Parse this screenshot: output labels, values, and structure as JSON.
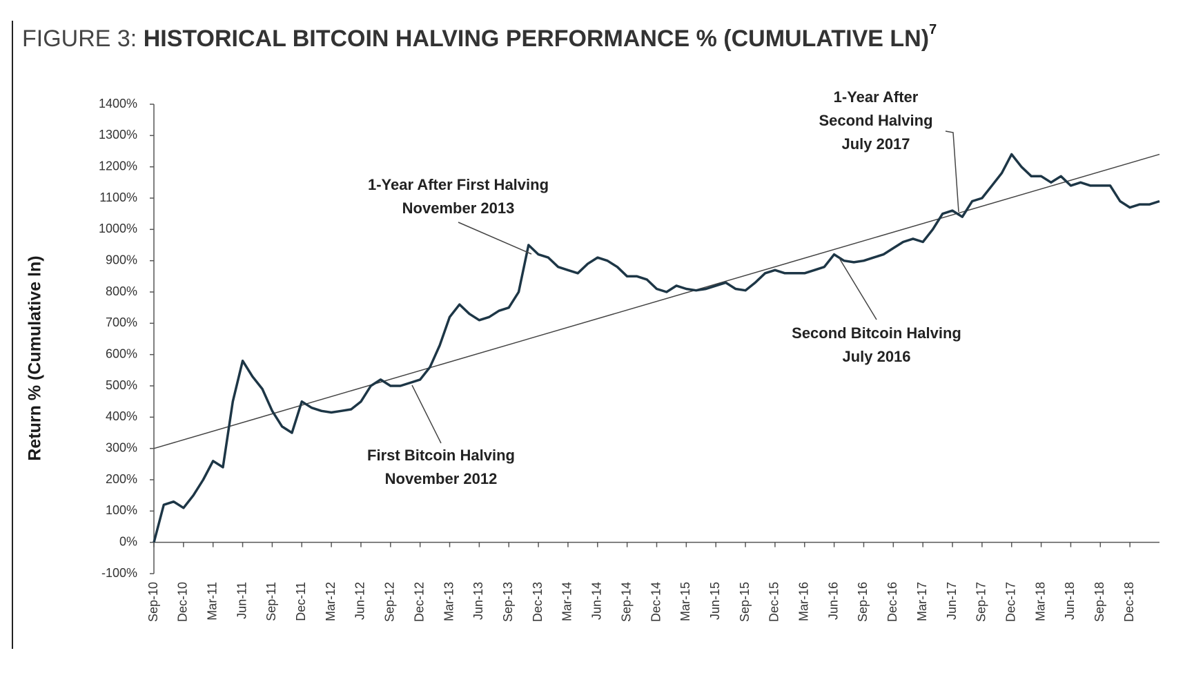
{
  "chart_data": {
    "type": "line",
    "title_label": "FIGURE 3:",
    "title": "HISTORICAL BITCOIN HALVING PERFORMANCE % (CUMULATIVE LN)",
    "title_note": "7",
    "y_label": "Return % (Cumulative ln)",
    "categories": [
      "Sep-10",
      null,
      null,
      "Dec-10",
      null,
      null,
      "Mar-11",
      null,
      null,
      "Jun-11",
      null,
      null,
      "Sep-11",
      null,
      null,
      "Dec-11",
      null,
      null,
      "Mar-12",
      null,
      null,
      "Jun-12",
      null,
      null,
      "Sep-12",
      null,
      null,
      "Dec-12",
      null,
      null,
      "Mar-13",
      null,
      null,
      "Jun-13",
      null,
      null,
      "Sep-13",
      null,
      null,
      "Dec-13",
      null,
      null,
      "Mar-14",
      null,
      null,
      "Jun-14",
      null,
      null,
      "Sep-14",
      null,
      null,
      "Dec-14",
      null,
      null,
      "Mar-15",
      null,
      null,
      "Jun-15",
      null,
      null,
      "Sep-15",
      null,
      null,
      "Dec-15",
      null,
      null,
      "Mar-16",
      null,
      null,
      "Jun-16",
      null,
      null,
      "Sep-16",
      null,
      null,
      "Dec-16",
      null,
      null,
      "Mar-17",
      null,
      null,
      "Jun-17",
      null,
      null,
      "Sep-17",
      null,
      null,
      "Dec-17",
      null,
      null,
      "Mar-18",
      null,
      null,
      "Jun-18",
      null,
      null,
      "Sep-18",
      null,
      null,
      "Dec-18",
      null,
      null,
      null
    ],
    "series": [
      {
        "color": "#1d3646",
        "values": [
          0,
          120,
          130,
          110,
          150,
          200,
          260,
          240,
          450,
          580,
          530,
          490,
          420,
          370,
          350,
          450,
          430,
          420,
          415,
          420,
          425,
          450,
          500,
          520,
          500,
          500,
          510,
          520,
          560,
          630,
          720,
          760,
          730,
          710,
          720,
          740,
          750,
          800,
          950,
          920,
          910,
          880,
          870,
          860,
          890,
          910,
          900,
          880,
          850,
          850,
          840,
          810,
          800,
          820,
          810,
          805,
          810,
          820,
          830,
          810,
          805,
          830,
          860,
          870,
          860,
          860,
          860,
          870,
          880,
          920,
          900,
          895,
          900,
          910,
          920,
          940,
          960,
          970,
          960,
          1000,
          1050,
          1060,
          1040,
          1090,
          1100,
          1140,
          1180,
          1240,
          1200,
          1170,
          1170,
          1150,
          1170,
          1140,
          1150,
          1140,
          1140,
          1140,
          1090,
          1070,
          1080,
          1080,
          1090
        ]
      }
    ],
    "trend_line": [
      300,
      1240
    ],
    "ylim": [
      -100,
      1400
    ],
    "yticks": [
      {
        "value": -100,
        "label": "-100%"
      },
      {
        "value": 0,
        "label": "0%"
      },
      {
        "value": 100,
        "label": "100%"
      },
      {
        "value": 200,
        "label": "200%"
      },
      {
        "value": 300,
        "label": "300%"
      },
      {
        "value": 400,
        "label": "400%"
      },
      {
        "value": 500,
        "label": "500%"
      },
      {
        "value": 600,
        "label": "600%"
      },
      {
        "value": 700,
        "label": "700%"
      },
      {
        "value": 800,
        "label": "800%"
      },
      {
        "value": 900,
        "label": "900%"
      },
      {
        "value": 1000,
        "label": "1000%"
      },
      {
        "value": 1100,
        "label": "1100%"
      },
      {
        "value": 1200,
        "label": "1200%"
      },
      {
        "value": 1300,
        "label": "1300%"
      },
      {
        "value": 1400,
        "label": "1400%"
      }
    ],
    "annotations": [
      {
        "lines": [
          "1-Year After First Halving",
          "November 2013"
        ]
      },
      {
        "lines": [
          "First Bitcoin Halving",
          "November 2012"
        ]
      },
      {
        "lines": [
          "Second Bitcoin Halving",
          "July 2016"
        ]
      },
      {
        "lines": [
          "1-Year After",
          "Second Halving",
          "July 2017"
        ]
      }
    ]
  }
}
